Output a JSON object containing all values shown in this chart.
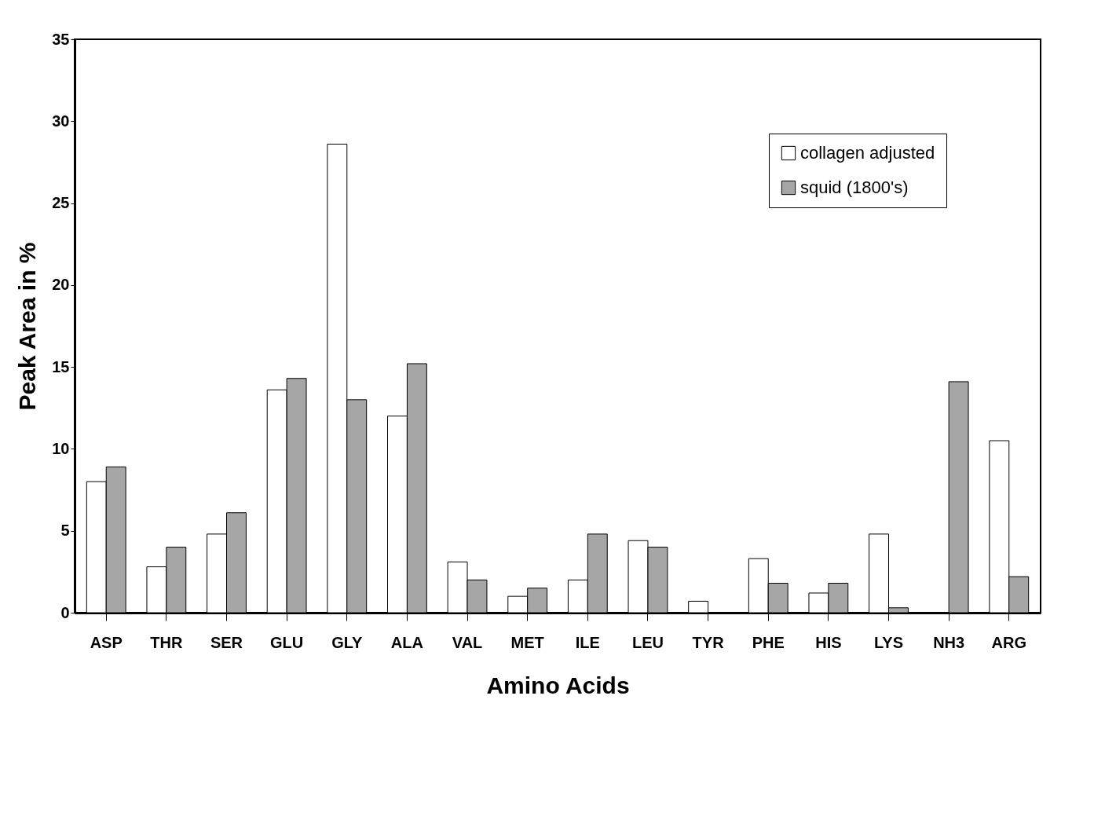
{
  "chart_data": {
    "type": "bar",
    "xlabel": "Amino Acids",
    "ylabel": "Peak Area in %",
    "categories": [
      "ASP",
      "THR",
      "SER",
      "GLU",
      "GLY",
      "ALA",
      "VAL",
      "MET",
      "ILE",
      "LEU",
      "TYR",
      "PHE",
      "HIS",
      "LYS",
      "NH3",
      "ARG"
    ],
    "series": [
      {
        "name": "collagen adjusted",
        "color": "#ffffff",
        "values": [
          8,
          2.8,
          4.8,
          13.6,
          28.6,
          12,
          3.1,
          1,
          2,
          4.4,
          0.7,
          3.3,
          1.2,
          4.8,
          null,
          10.5
        ]
      },
      {
        "name": "squid (1800's)",
        "color": "#a6a6a6",
        "values": [
          8.9,
          4,
          6.1,
          14.3,
          13,
          15.2,
          2,
          1.5,
          4.8,
          4,
          null,
          1.8,
          1.8,
          0.3,
          14.1,
          2.2
        ]
      }
    ],
    "ylim": [
      0,
      35
    ],
    "yticks": [
      0,
      5,
      10,
      15,
      20,
      25,
      30,
      35
    ],
    "grid": false,
    "legend": "top right"
  }
}
